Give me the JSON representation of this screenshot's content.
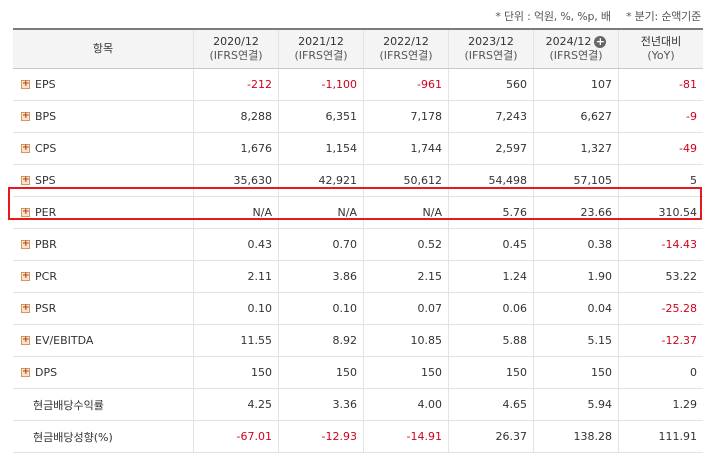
{
  "notes": {
    "unit": "* 단위 : 억원, %, %p, 배",
    "period": "* 분기: 순액기준"
  },
  "header": {
    "item_label": "항목",
    "columns": [
      {
        "year": "2020/12",
        "sub": "(IFRS연결)"
      },
      {
        "year": "2021/12",
        "sub": "(IFRS연결)"
      },
      {
        "year": "2022/12",
        "sub": "(IFRS연결)"
      },
      {
        "year": "2023/12",
        "sub": "(IFRS연결)"
      },
      {
        "year": "2024/12",
        "sub": "(IFRS연결)"
      },
      {
        "year": "전년대비",
        "sub": "(YoY)"
      }
    ],
    "expand_glyph": "+"
  },
  "colors": {
    "negative": "#d0021b",
    "highlight_border": "#e8191e"
  },
  "rows": [
    {
      "label": "EPS",
      "values": [
        "-212",
        "-1,100",
        "-961",
        "560",
        "107",
        "-81"
      ]
    },
    {
      "label": "BPS",
      "values": [
        "8,288",
        "6,351",
        "7,178",
        "7,243",
        "6,627",
        "-9"
      ]
    },
    {
      "label": "CPS",
      "values": [
        "1,676",
        "1,154",
        "1,744",
        "2,597",
        "1,327",
        "-49"
      ]
    },
    {
      "label": "SPS",
      "values": [
        "35,630",
        "42,921",
        "50,612",
        "54,498",
        "57,105",
        "5"
      ]
    },
    {
      "label": "PER",
      "values": [
        "N/A",
        "N/A",
        "N/A",
        "5.76",
        "23.66",
        "310.54"
      ]
    },
    {
      "label": "PBR",
      "values": [
        "0.43",
        "0.70",
        "0.52",
        "0.45",
        "0.38",
        "-14.43"
      ]
    },
    {
      "label": "PCR",
      "values": [
        "2.11",
        "3.86",
        "2.15",
        "1.24",
        "1.90",
        "53.22"
      ]
    },
    {
      "label": "PSR",
      "values": [
        "0.10",
        "0.10",
        "0.07",
        "0.06",
        "0.04",
        "-25.28"
      ]
    },
    {
      "label": "EV/EBITDA",
      "values": [
        "11.55",
        "8.92",
        "10.85",
        "5.88",
        "5.15",
        "-12.37"
      ]
    },
    {
      "label": "DPS",
      "values": [
        "150",
        "150",
        "150",
        "150",
        "150",
        "0"
      ]
    },
    {
      "label": "현금배당수익률",
      "values": [
        "4.25",
        "3.36",
        "4.00",
        "4.65",
        "5.94",
        "1.29"
      ]
    },
    {
      "label": "현금배당성향(%)",
      "values": [
        "-67.01",
        "-12.93",
        "-14.91",
        "26.37",
        "138.28",
        "111.91"
      ]
    }
  ],
  "expandable_rows": 10,
  "highlighted_row_label": "PER"
}
